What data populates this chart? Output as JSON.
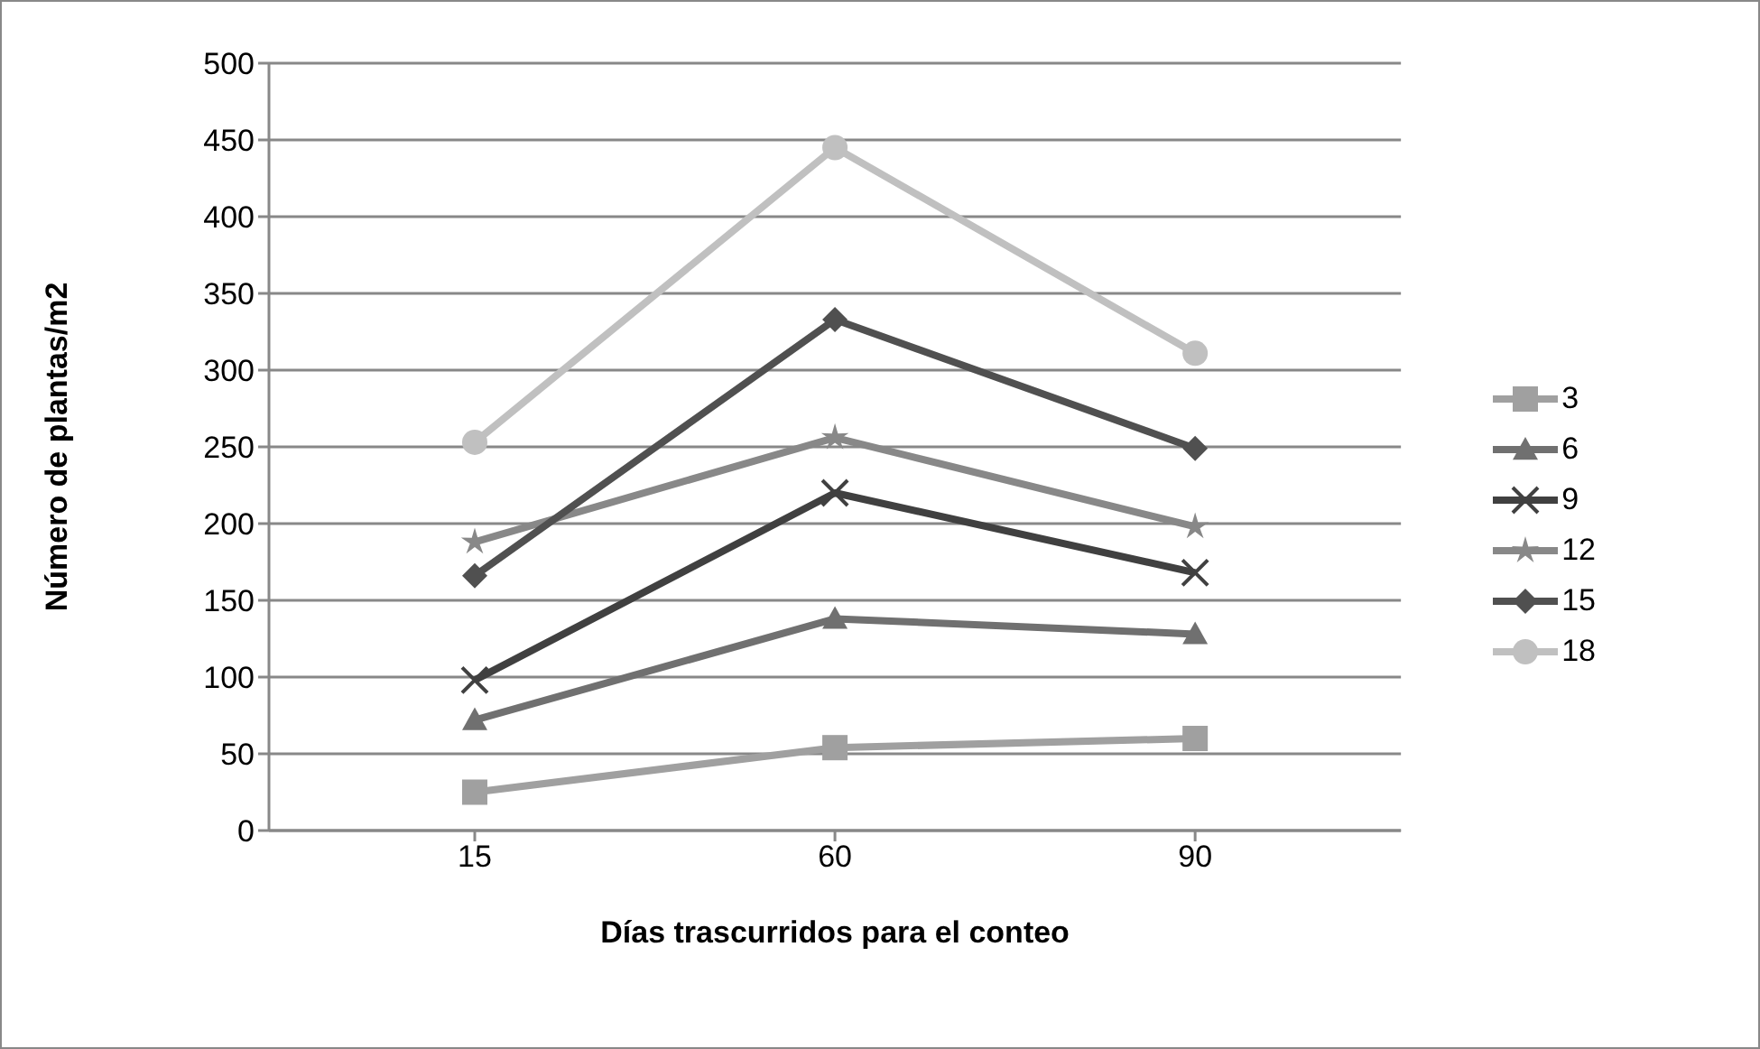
{
  "chart_data": {
    "type": "line",
    "xlabel": "Días trascurridos para el conteo",
    "ylabel": "Número de plantas/m2",
    "categories": [
      "15",
      "60",
      "90"
    ],
    "ylim": [
      0,
      500
    ],
    "yticks": [
      0,
      50,
      100,
      150,
      200,
      250,
      300,
      350,
      400,
      450,
      500
    ],
    "grid": "y",
    "legend": "right",
    "line_style": "solid",
    "series": [
      {
        "name": "3",
        "color": "#a0a0a0",
        "marker": "square",
        "values": [
          25,
          54,
          60
        ]
      },
      {
        "name": "6",
        "color": "#707070",
        "marker": "triangle",
        "values": [
          72,
          138,
          128
        ]
      },
      {
        "name": "9",
        "color": "#404040",
        "marker": "cross",
        "values": [
          98,
          220,
          168
        ]
      },
      {
        "name": "12",
        "color": "#888888",
        "marker": "star",
        "values": [
          188,
          256,
          198
        ]
      },
      {
        "name": "15",
        "color": "#505050",
        "marker": "diamond",
        "values": [
          166,
          333,
          249
        ]
      },
      {
        "name": "18",
        "color": "#c0c0c0",
        "marker": "circle",
        "values": [
          253,
          445,
          311
        ]
      }
    ]
  }
}
